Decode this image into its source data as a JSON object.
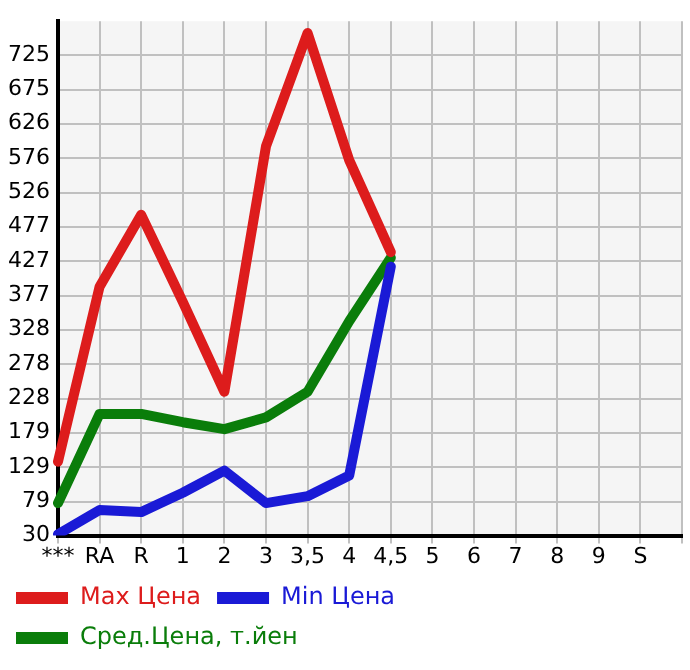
{
  "chart_data": {
    "type": "line",
    "categories": [
      "***",
      "RA",
      "R",
      "1",
      "2",
      "3",
      "3,5",
      "4",
      "4,5",
      "5",
      "6",
      "7",
      "8",
      "9",
      "S",
      null
    ],
    "series": [
      {
        "name": "Max Цена",
        "color": "#dd1c1c",
        "values": [
          137,
          390,
          494,
          368,
          238,
          593,
          757,
          573,
          440,
          null,
          null,
          null,
          null,
          null,
          null,
          null
        ]
      },
      {
        "name": "Min Цена",
        "color": "#1a1ad6",
        "values": [
          32,
          67,
          64,
          92,
          124,
          77,
          87,
          117,
          419,
          null,
          null,
          null,
          null,
          null,
          null,
          null
        ]
      },
      {
        "name": "Сред.Цена, т.йен",
        "color": "#0a7d0a",
        "values": [
          77,
          206,
          206,
          194,
          184,
          201,
          238,
          340,
          432,
          null,
          null,
          null,
          null,
          null,
          null,
          null
        ]
      }
    ],
    "ylim": [
      30,
      774
    ],
    "yticks": [
      30,
      79,
      129,
      179,
      228,
      278,
      328,
      377,
      427,
      477,
      526,
      576,
      626,
      675,
      725
    ],
    "grid": true,
    "legend": "bottom",
    "marker": "none",
    "line_style": "solid"
  }
}
